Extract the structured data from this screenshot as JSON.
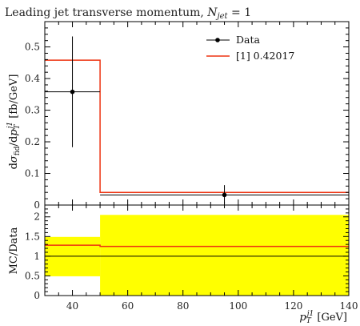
{
  "chart_data": [
    {
      "type": "line",
      "title": "Leading jet transverse momentum, N_jet = 1",
      "title_parts": {
        "main": "Leading jet transverse momentum, ",
        "math_var": "N",
        "math_sub": "jet",
        "tail": " = 1"
      },
      "ylabel": "dσfid/dpT^j1 [fb/GeV]",
      "ylabel_parts": {
        "d1": "d",
        "sigma": "σ",
        "fid": "fid",
        "slash": "/",
        "d2": "d",
        "p": "p",
        "T": "T",
        "j1": "j1",
        "units": " [fb/GeV]"
      },
      "xlim": [
        30,
        140
      ],
      "ylim": [
        0,
        0.58
      ],
      "yticks": [
        0,
        0.1,
        0.2,
        0.3,
        0.4,
        0.5
      ],
      "ytick_labels": [
        "0",
        "0.1",
        "0.2",
        "0.3",
        "0.4",
        "0.5"
      ],
      "legend_position": "top-right",
      "series": [
        {
          "name": "Data",
          "kind": "points",
          "color": "#000000",
          "points": [
            {
              "x": 40,
              "xlow": 30,
              "xhigh": 50,
              "y": 0.358,
              "ylow": 0.183,
              "yhigh": 0.533
            },
            {
              "x": 95,
              "xlow": 50,
              "xhigh": 140,
              "y": 0.032,
              "ylow": 0.004,
              "yhigh": 0.063
            }
          ]
        },
        {
          "name": "[1] 0.42017",
          "kind": "histogram",
          "color": "#ee3311",
          "bins": [
            {
              "xlow": 30,
              "xhigh": 50,
              "y": 0.458
            },
            {
              "xlow": 50,
              "xhigh": 140,
              "y": 0.04
            }
          ]
        }
      ]
    },
    {
      "type": "area",
      "ylabel": "MC/Data",
      "xlabel": "pT^j1 [GeV]",
      "xlabel_parts": {
        "p": "p",
        "T": "T",
        "j1": "j1",
        "units": " [GeV]"
      },
      "xlim": [
        30,
        140
      ],
      "ylim": [
        0,
        2.3
      ],
      "xticks": [
        40,
        60,
        80,
        100,
        120,
        140
      ],
      "xtick_labels": [
        "40",
        "60",
        "80",
        "100",
        "120",
        "140"
      ],
      "yticks": [
        0,
        0.5,
        1,
        1.5,
        2
      ],
      "ytick_labels": [
        "0",
        "0.5",
        "1",
        "1.5",
        "2"
      ],
      "band": {
        "color": "#ffff00",
        "bins": [
          {
            "xlow": 30,
            "xhigh": 50,
            "ylow": 0.49,
            "yhigh": 1.49
          },
          {
            "xlow": 50,
            "xhigh": 140,
            "ylow": 0,
            "yhigh": 2.05
          }
        ]
      },
      "series": [
        {
          "name": "[1] 0.42017",
          "color": "#ee3311",
          "bins": [
            {
              "xlow": 30,
              "xhigh": 50,
              "y": 1.28
            },
            {
              "xlow": 50,
              "xhigh": 140,
              "y": 1.25
            }
          ]
        }
      ],
      "reference_line": 1.0
    }
  ]
}
